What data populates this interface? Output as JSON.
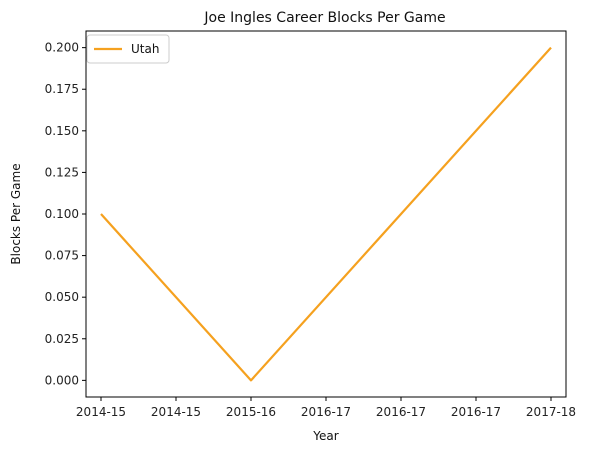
{
  "chart_data": {
    "type": "line",
    "title": "Joe Ingles Career Blocks Per Game",
    "xlabel": "Year",
    "ylabel": "Blocks Per Game",
    "x_tick_labels": [
      "2014-15",
      "2014-15",
      "2015-16",
      "2016-17",
      "2016-17",
      "2016-17",
      "2017-18"
    ],
    "x_tick_positions": [
      2014,
      2014.5,
      2015,
      2015.5,
      2016,
      2016.5,
      2017
    ],
    "y_ticks": [
      "0.000",
      "0.025",
      "0.050",
      "0.075",
      "0.100",
      "0.125",
      "0.150",
      "0.175",
      "0.200"
    ],
    "ylim": [
      -0.01,
      0.21
    ],
    "xlim": [
      2013.9,
      2017.1
    ],
    "grid": false,
    "legend_position": "upper-left",
    "series": [
      {
        "name": "Utah",
        "color": "#f5a11f",
        "x": [
          2014,
          2015,
          2016,
          2017
        ],
        "values": [
          0.1,
          0.0,
          0.1,
          0.2
        ]
      }
    ]
  }
}
